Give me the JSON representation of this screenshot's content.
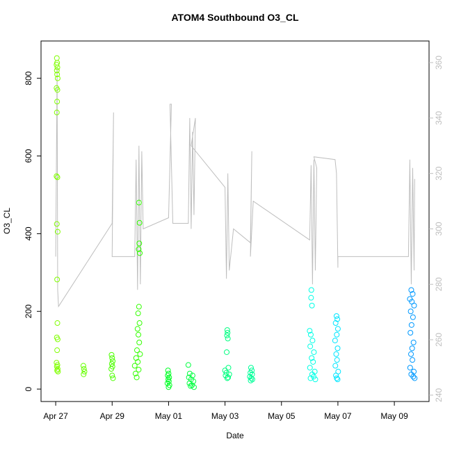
{
  "chart_data": {
    "type": "scatter",
    "title": "ATOM4 Southbound O3_CL",
    "xlabel": "Date",
    "ylabel": "O3_CL",
    "xlim": [
      -0.52,
      13.23
    ],
    "ylim": [
      -32,
      896
    ],
    "y2lim": [
      237.7,
      367.8
    ],
    "xticks": [
      {
        "value": 0,
        "label": "Apr 27"
      },
      {
        "value": 2,
        "label": "Apr 29"
      },
      {
        "value": 4,
        "label": "May 01"
      },
      {
        "value": 6,
        "label": "May 03"
      },
      {
        "value": 8,
        "label": "May 05"
      },
      {
        "value": 10,
        "label": "May 07"
      },
      {
        "value": 12,
        "label": "May 09"
      }
    ],
    "yticks": [
      0,
      200,
      400,
      600,
      800
    ],
    "y2ticks": [
      240,
      260,
      280,
      300,
      320,
      340,
      360
    ],
    "series": [
      {
        "color": "#80ff00",
        "x": [
          0.04,
          0.05,
          0.03,
          0.06,
          0.04,
          0.05,
          0.07,
          0.03,
          0.06,
          0.05,
          0.04,
          0.03,
          0.06,
          0.04,
          0.07,
          0.05,
          0.06,
          0.04,
          0.07,
          0.05,
          0.03,
          0.06,
          0.04,
          0.07,
          0.05,
          0.08
        ],
        "values": [
          852,
          840,
          835,
          828,
          820,
          810,
          800,
          775,
          770,
          740,
          712,
          548,
          545,
          425,
          405,
          282,
          170,
          133,
          128,
          100,
          68,
          62,
          58,
          52,
          48,
          45
        ]
      },
      {
        "color": "#66ff00",
        "x": [
          0.98,
          1.0,
          1.02,
          0.99
        ],
        "values": [
          60,
          52,
          45,
          38
        ]
      },
      {
        "color": "#4cff00",
        "x": [
          1.98,
          2.0,
          2.02,
          1.99,
          2.01,
          1.97,
          2.0,
          2.03
        ],
        "values": [
          88,
          80,
          72,
          65,
          58,
          52,
          35,
          28
        ]
      },
      {
        "color": "#33ff00",
        "x": [
          2.95,
          2.97,
          2.96,
          2.94,
          2.98,
          2.95,
          2.92,
          2.97,
          2.9,
          2.93,
          2.96,
          2.88,
          2.99,
          2.85,
          2.91,
          2.8,
          2.94,
          2.83,
          2.87
        ],
        "values": [
          480,
          428,
          375,
          360,
          350,
          212,
          195,
          170,
          155,
          140,
          120,
          100,
          90,
          80,
          70,
          60,
          50,
          40,
          30
        ]
      },
      {
        "color": "#00ff26",
        "x": [
          3.98,
          4.0,
          3.97,
          4.02,
          3.99,
          4.01,
          3.96,
          4.03,
          4.0
        ],
        "values": [
          48,
          40,
          35,
          30,
          25,
          20,
          15,
          10,
          5
        ]
      },
      {
        "color": "#00ff40",
        "x": [
          4.7,
          4.75,
          4.85,
          4.72,
          4.8,
          4.88,
          4.74,
          4.83,
          4.78,
          4.9
        ],
        "values": [
          62,
          40,
          35,
          30,
          25,
          20,
          15,
          10,
          8,
          5
        ]
      },
      {
        "color": "#00ff80",
        "x": [
          6.08,
          6.09,
          6.07,
          6.1,
          6.06,
          6.12,
          6.0,
          6.05,
          6.15,
          6.02,
          6.11,
          6.08
        ],
        "values": [
          152,
          145,
          138,
          130,
          95,
          55,
          48,
          42,
          38,
          35,
          30,
          28
        ]
      },
      {
        "color": "#00ff99",
        "x": [
          6.92,
          6.95,
          6.9,
          6.96,
          6.88,
          6.93,
          6.97,
          6.91
        ],
        "values": [
          55,
          48,
          42,
          38,
          32,
          28,
          25,
          22
        ]
      },
      {
        "color": "#00ffe6",
        "x": [
          9.06,
          9.05,
          9.08,
          9.0,
          9.04,
          9.1,
          9.02,
          9.15,
          9.07,
          9.12,
          9.01,
          9.18,
          9.09,
          9.14,
          9.03,
          9.2
        ],
        "values": [
          255,
          235,
          215,
          150,
          140,
          125,
          110,
          95,
          80,
          70,
          55,
          45,
          38,
          32,
          28,
          25
        ]
      },
      {
        "color": "#00e6ff",
        "x": [
          9.95,
          9.98,
          9.92,
          10.0,
          9.96,
          9.9,
          9.99,
          9.94,
          9.97,
          9.91,
          10.01,
          9.93,
          9.96,
          9.99
        ],
        "values": [
          188,
          180,
          170,
          155,
          140,
          125,
          105,
          90,
          75,
          60,
          45,
          35,
          28,
          25
        ]
      },
      {
        "color": "#0099ff",
        "x": [
          12.6,
          12.65,
          12.55,
          12.62,
          12.7,
          12.58,
          12.66,
          12.61,
          12.57,
          12.68,
          12.63,
          12.59,
          12.64,
          12.56,
          12.69,
          12.6,
          12.67,
          12.72
        ],
        "values": [
          255,
          245,
          232,
          225,
          215,
          200,
          185,
          165,
          145,
          120,
          105,
          90,
          75,
          55,
          45,
          38,
          32,
          28
        ]
      },
      {
        "type": "line",
        "axis": "y2",
        "color": "#bebebe",
        "x": [
          0.0,
          0.05,
          0.07,
          0.1,
          2.0,
          2.05,
          2.0,
          2.8,
          2.85,
          2.9,
          2.95,
          3.0,
          3.05,
          3.1,
          4.0,
          4.1,
          4.05,
          4.15,
          4.7,
          4.75,
          4.8,
          4.85,
          4.9,
          4.95,
          4.8,
          6.0,
          6.05,
          6.1,
          6.15,
          6.3,
          6.9,
          6.95,
          6.9,
          7.0,
          9.0,
          9.05,
          9.1,
          9.15,
          9.2,
          9.25,
          9.15,
          9.9,
          9.95,
          10.0,
          10.0,
          12.5,
          12.55,
          12.6,
          12.65,
          12.7,
          12.72
        ],
        "values": [
          290,
          358,
          278,
          272,
          302,
          342,
          290,
          290,
          325,
          278,
          330,
          280,
          328,
          300,
          304,
          345,
          345,
          302,
          302,
          340,
          300,
          335,
          305,
          340,
          330,
          315,
          282,
          320,
          285,
          300,
          295,
          328,
          290,
          310,
          296,
          323,
          280,
          325,
          285,
          322,
          326,
          325,
          320,
          286,
          290,
          290,
          325,
          280,
          322,
          285,
          318
        ]
      }
    ]
  }
}
